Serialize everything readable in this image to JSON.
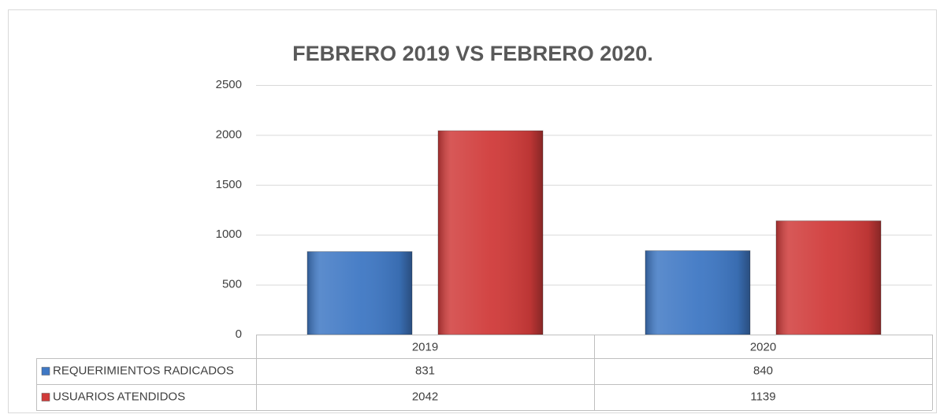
{
  "chart_data": {
    "type": "bar",
    "title": "FEBRERO 2019 VS FEBRERO 2020.",
    "categories": [
      "2019",
      "2020"
    ],
    "series": [
      {
        "name": "REQUERIMIENTOS RADICADOS",
        "color": "#3f78c4",
        "values": [
          831,
          840
        ]
      },
      {
        "name": "USUARIOS ATENDIDOS",
        "color": "#d03b3a",
        "values": [
          2042,
          1139
        ]
      }
    ],
    "ylim": [
      0,
      2500
    ],
    "yticks": [
      0,
      500,
      1000,
      1500,
      2000,
      2500
    ],
    "grid": true,
    "data_table": true
  }
}
